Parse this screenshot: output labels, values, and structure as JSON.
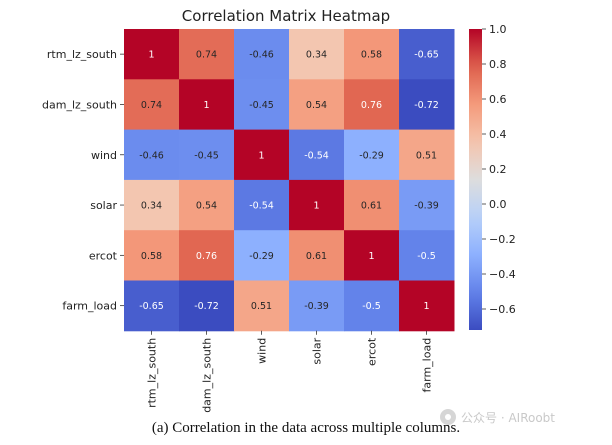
{
  "chart_data": {
    "type": "heatmap",
    "title": "Correlation Matrix Heatmap",
    "labels": [
      "rtm_lz_south",
      "dam_lz_south",
      "wind",
      "solar",
      "ercot",
      "farm_load"
    ],
    "cell_labels": [
      [
        "1",
        "0.74",
        "-0.46",
        "0.34",
        "0.58",
        "-0.65"
      ],
      [
        "0.74",
        "1",
        "-0.45",
        "0.54",
        "0.76",
        "-0.72"
      ],
      [
        "-0.46",
        "-0.45",
        "1",
        "-0.54",
        "-0.29",
        "0.51"
      ],
      [
        "0.34",
        "0.54",
        "-0.54",
        "1",
        "0.61",
        "-0.39"
      ],
      [
        "0.58",
        "0.76",
        "-0.29",
        "0.61",
        "1",
        "-0.5"
      ],
      [
        "-0.65",
        "-0.72",
        "0.51",
        "-0.39",
        "-0.5",
        "1"
      ]
    ],
    "matrix": [
      [
        1,
        0.74,
        -0.46,
        0.34,
        0.58,
        -0.65
      ],
      [
        0.74,
        1,
        -0.45,
        0.54,
        0.76,
        -0.72
      ],
      [
        -0.46,
        -0.45,
        1,
        -0.54,
        -0.29,
        0.51
      ],
      [
        0.34,
        0.54,
        -0.54,
        1,
        0.61,
        -0.39
      ],
      [
        0.58,
        0.76,
        -0.29,
        0.61,
        1,
        -0.5
      ],
      [
        -0.65,
        -0.72,
        0.51,
        -0.39,
        -0.5,
        1
      ]
    ],
    "colormap": "coolwarm",
    "vmin": -0.72,
    "vmax": 1,
    "colorbar_ticks": [
      1.0,
      0.8,
      0.6,
      0.4,
      0.2,
      0.0,
      -0.2,
      -0.4,
      -0.6
    ],
    "colorbar_tick_labels": [
      "1.0",
      "0.8",
      "0.6",
      "0.4",
      "0.2",
      "0.0",
      "−0.2",
      "−0.4",
      "−0.6"
    ]
  },
  "caption": "(a) Correlation in the data across multiple columns.",
  "watermark": {
    "text": "公众号 · AIRoobt",
    "icon": "wechat-icon"
  }
}
